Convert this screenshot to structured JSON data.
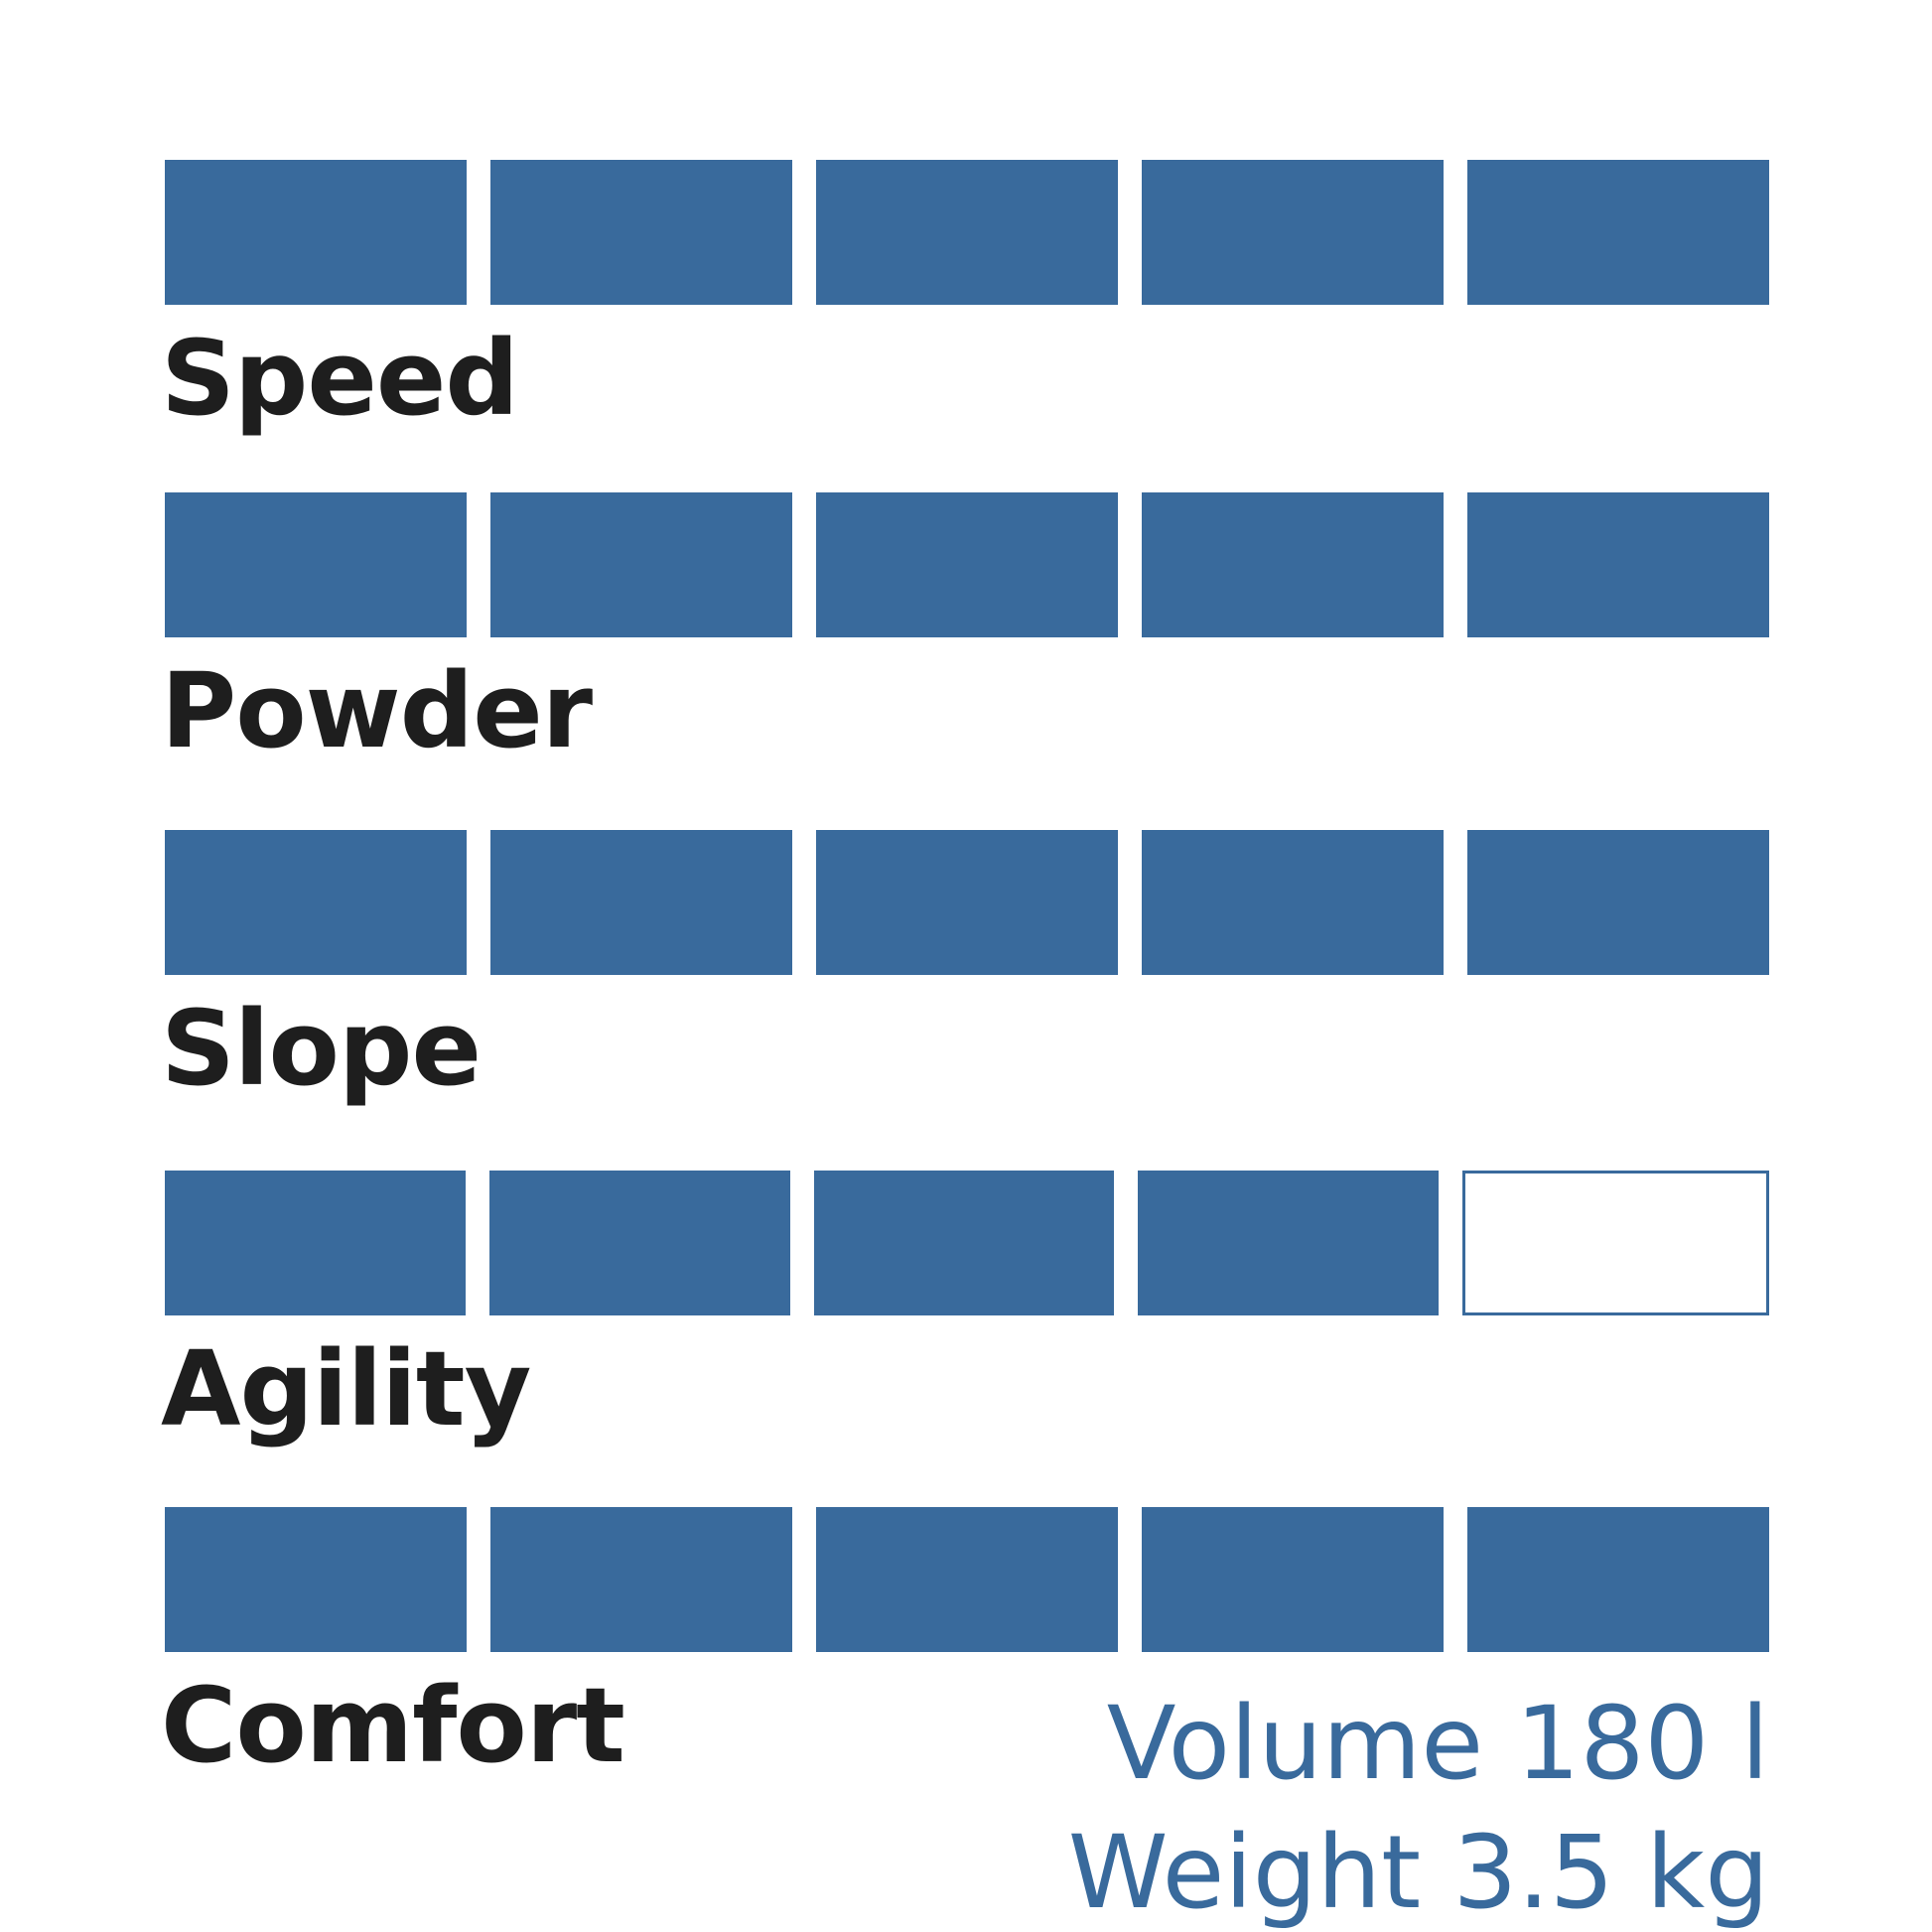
{
  "accent_color": "#396a9c",
  "max_rating": 5,
  "ratings": [
    {
      "label": "Speed",
      "value": 5
    },
    {
      "label": "Powder",
      "value": 5
    },
    {
      "label": "Slope",
      "value": 5
    },
    {
      "label": "Agility",
      "value": 4
    },
    {
      "label": "Comfort",
      "value": 5
    }
  ],
  "specs": {
    "volume": "Volume 180 l",
    "weight": "Weight 3.5 kg"
  }
}
